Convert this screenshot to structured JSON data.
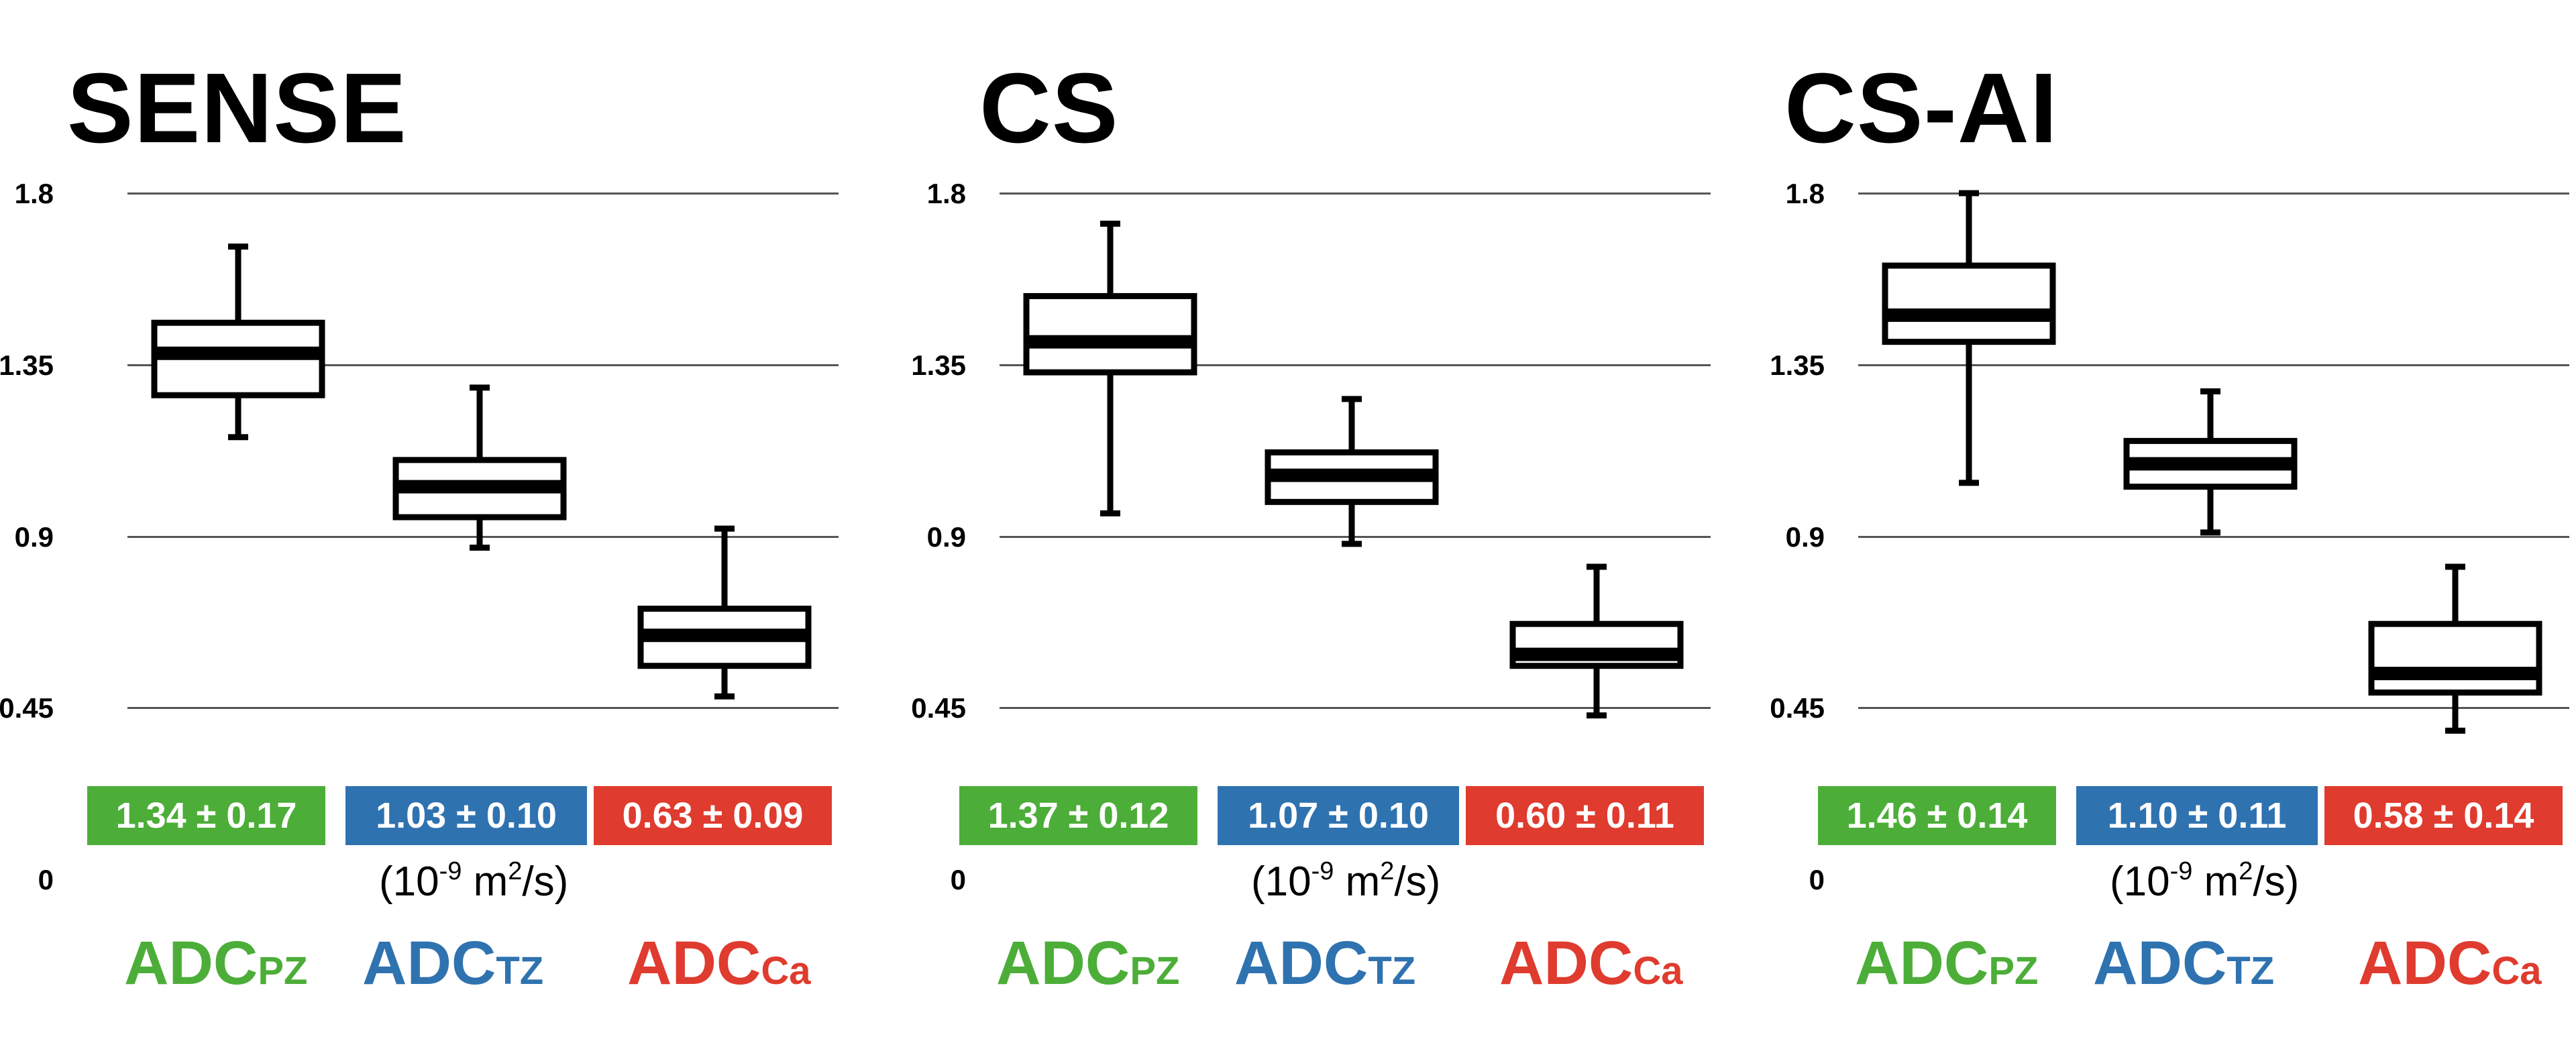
{
  "colors": {
    "pz": "#4cae38",
    "tz": "#2f72b0",
    "ca": "#df3b2e",
    "box": "#000000",
    "grid": "#555555"
  },
  "units": {
    "prefix": "(10",
    "exp": "-9",
    "mid": " m",
    "exp2": "2",
    "suffix": "/s)"
  },
  "categories": [
    {
      "main": "ADC",
      "sub": "PZ",
      "color_key": "pz"
    },
    {
      "main": "ADC",
      "sub": "TZ",
      "color_key": "tz"
    },
    {
      "main": "ADC",
      "sub": "Ca",
      "color_key": "ca"
    }
  ],
  "panels": [
    {
      "title": "SENSE",
      "stats": [
        "1.34 ± 0.17",
        "1.03 ± 0.10",
        "0.63 ± 0.09"
      ]
    },
    {
      "title": "CS",
      "stats": [
        "1.37 ± 0.12",
        "1.07 ± 0.10",
        "0.60 ± 0.11"
      ]
    },
    {
      "title": "CS-AI",
      "stats": [
        "1.46 ± 0.14",
        "1.10 ± 0.11",
        "0.58 ± 0.14"
      ]
    }
  ],
  "chart_data": [
    {
      "type": "boxplot",
      "title": "SENSE",
      "categories": [
        "ADC PZ",
        "ADC TZ",
        "ADC Ca"
      ],
      "ylabel": "(10-9 m2/s)",
      "ylim": [
        0,
        1.8
      ],
      "yticks": [
        "0",
        "0.45",
        "0.9",
        "1.35",
        "1.8"
      ],
      "grid": true,
      "series": [
        {
          "name": "ADC PZ",
          "min": 1.16,
          "q1": 1.27,
          "median": 1.38,
          "q3": 1.46,
          "max": 1.66
        },
        {
          "name": "ADC TZ",
          "min": 0.87,
          "q1": 0.95,
          "median": 1.03,
          "q3": 1.1,
          "max": 1.29
        },
        {
          "name": "ADC Ca",
          "min": 0.48,
          "q1": 0.56,
          "median": 0.64,
          "q3": 0.71,
          "max": 0.92
        }
      ]
    },
    {
      "type": "boxplot",
      "title": "CS",
      "categories": [
        "ADC PZ",
        "ADC TZ",
        "ADC Ca"
      ],
      "ylabel": "(10-9 m2/s)",
      "ylim": [
        0,
        1.8
      ],
      "yticks": [
        "0",
        "0.45",
        "0.9",
        "1.35",
        "1.8"
      ],
      "grid": true,
      "series": [
        {
          "name": "ADC PZ",
          "min": 0.96,
          "q1": 1.33,
          "median": 1.41,
          "q3": 1.53,
          "max": 1.72
        },
        {
          "name": "ADC TZ",
          "min": 0.88,
          "q1": 0.99,
          "median": 1.06,
          "q3": 1.12,
          "max": 1.26
        },
        {
          "name": "ADC Ca",
          "min": 0.43,
          "q1": 0.56,
          "median": 0.59,
          "q3": 0.67,
          "max": 0.82
        }
      ]
    },
    {
      "type": "boxplot",
      "title": "CS-AI",
      "categories": [
        "ADC PZ",
        "ADC TZ",
        "ADC Ca"
      ],
      "ylabel": "(10-9 m2/s)",
      "ylim": [
        0,
        1.8
      ],
      "yticks": [
        "0",
        "0.45",
        "0.9",
        "1.35",
        "1.8"
      ],
      "grid": true,
      "series": [
        {
          "name": "ADC PZ",
          "min": 1.04,
          "q1": 1.41,
          "median": 1.48,
          "q3": 1.61,
          "max": 1.8
        },
        {
          "name": "ADC TZ",
          "min": 0.91,
          "q1": 1.03,
          "median": 1.09,
          "q3": 1.15,
          "max": 1.28
        },
        {
          "name": "ADC Ca",
          "min": 0.39,
          "q1": 0.49,
          "median": 0.54,
          "q3": 0.67,
          "max": 0.82
        }
      ]
    }
  ]
}
